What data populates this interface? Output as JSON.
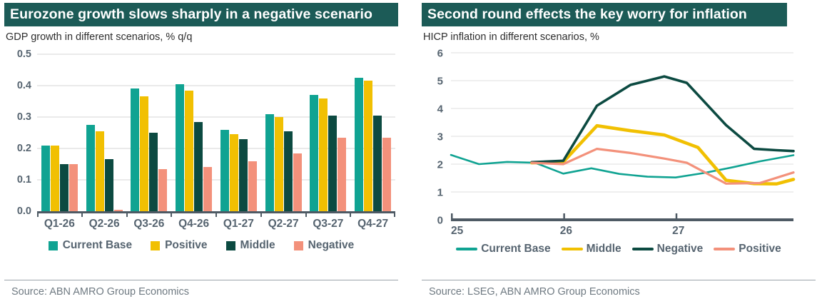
{
  "left_panel": {
    "title": "Eurozone growth slows sharply in a negative scenario",
    "subtitle": "GDP growth in different scenarios, % q/q",
    "source": "Source: ABN AMRO Group Economics"
  },
  "right_panel": {
    "title": "Second round effects the key worry for inflation",
    "subtitle": "HICP inflation in different scenarios, %",
    "source": "Source:  LSEG, ABN AMRO Group Economics"
  },
  "colors": {
    "title_bar_bg": "#1c5b57",
    "axis_text": "#566470",
    "axis_line": "#4e5a64",
    "gridline": "#eaeaea",
    "current_base_teal": "#10a392",
    "positive_yellow": "#f1c002",
    "middle_dark_teal": "#0c4a41",
    "negative_salmon": "#f3917b"
  },
  "chart_data": [
    {
      "type": "bar",
      "title": "Eurozone growth slows sharply in a negative scenario",
      "subtitle": "GDP growth in different scenarios, % q/q",
      "categories": [
        "Q1-26",
        "Q2-26",
        "Q3-26",
        "Q4-26",
        "Q1-27",
        "Q2-27",
        "Q3-27",
        "Q4-27"
      ],
      "series": [
        {
          "name": "Current Base",
          "color": "#10a392",
          "values": [
            0.21,
            0.275,
            0.39,
            0.405,
            0.26,
            0.31,
            0.37,
            0.425
          ]
        },
        {
          "name": "Positive",
          "color": "#f1c002",
          "values": [
            0.21,
            0.255,
            0.365,
            0.385,
            0.245,
            0.3,
            0.36,
            0.415
          ]
        },
        {
          "name": "Middle",
          "color": "#0c4a41",
          "values": [
            0.15,
            0.165,
            0.25,
            0.285,
            0.23,
            0.255,
            0.305,
            0.305
          ]
        },
        {
          "name": "Negative",
          "color": "#f3917b",
          "values": [
            0.15,
            0.005,
            0.135,
            0.14,
            0.16,
            0.185,
            0.235,
            0.235
          ]
        }
      ],
      "ylim": [
        0,
        0.5
      ],
      "yticks": [
        0.0,
        0.1,
        0.2,
        0.3,
        0.4,
        0.5
      ],
      "grid": true,
      "legend_position": "bottom"
    },
    {
      "type": "line",
      "title": "Second round effects the key worry for inflation",
      "subtitle": "HICP inflation in different scenarios, %",
      "xlim": [
        25,
        28.05
      ],
      "ylim": [
        0,
        6
      ],
      "yticks": [
        0,
        1,
        2,
        3,
        4,
        5,
        6
      ],
      "xticks": [
        {
          "x": 25,
          "label": "25"
        },
        {
          "x": 26,
          "label": "26"
        },
        {
          "x": 27,
          "label": "27"
        }
      ],
      "grid": true,
      "legend_position": "bottom",
      "series": [
        {
          "name": "Current Base",
          "color": "#10a392",
          "stroke_width": 2.6,
          "x": [
            25.0,
            25.25,
            25.5,
            25.75,
            26.0,
            26.25,
            26.5,
            26.75,
            27.0,
            27.25,
            27.5,
            27.75,
            28.05
          ],
          "y": [
            2.33,
            2.0,
            2.08,
            2.05,
            1.66,
            1.85,
            1.65,
            1.55,
            1.52,
            1.68,
            1.88,
            2.1,
            2.32
          ]
        },
        {
          "name": "Middle",
          "color": "#f1c002",
          "stroke_width": 4.6,
          "x": [
            25.72,
            26.0,
            26.3,
            26.6,
            26.9,
            27.2,
            27.45,
            27.7,
            27.9,
            28.05
          ],
          "y": [
            2.05,
            2.08,
            3.38,
            3.2,
            3.05,
            2.6,
            1.42,
            1.3,
            1.29,
            1.45
          ]
        },
        {
          "name": "Negative",
          "color": "#0c4a41",
          "stroke_width": 3.6,
          "x": [
            25.72,
            26.0,
            26.3,
            26.6,
            26.9,
            27.1,
            27.45,
            27.7,
            27.9,
            28.05
          ],
          "y": [
            2.07,
            2.12,
            4.1,
            4.85,
            5.15,
            4.92,
            3.4,
            2.55,
            2.5,
            2.47
          ]
        },
        {
          "name": "Positive",
          "color": "#f3917b",
          "stroke_width": 3.2,
          "x": [
            25.72,
            26.0,
            26.3,
            26.6,
            26.9,
            27.1,
            27.45,
            27.75,
            28.05
          ],
          "y": [
            2.05,
            2.0,
            2.55,
            2.4,
            2.2,
            2.05,
            1.3,
            1.32,
            1.7
          ]
        }
      ]
    }
  ]
}
